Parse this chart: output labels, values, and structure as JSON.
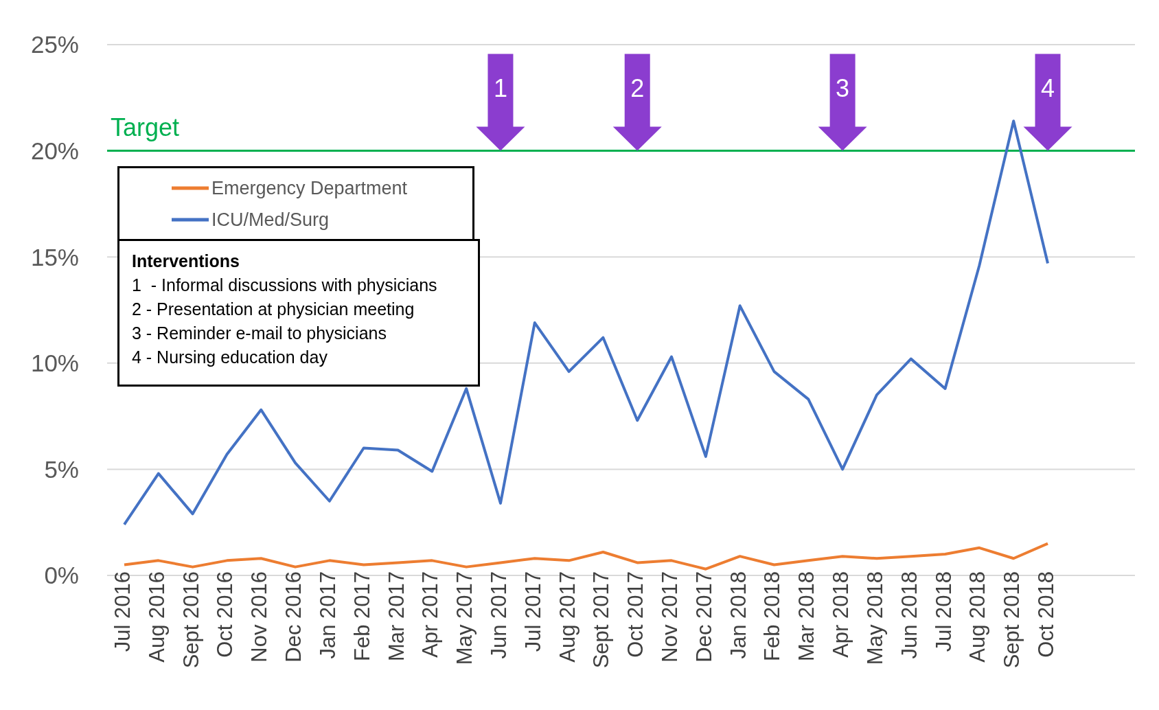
{
  "chart_data": {
    "type": "line",
    "categories": [
      "Jul 2016",
      "Aug 2016",
      "Sept 2016",
      "Oct 2016",
      "Nov 2016",
      "Dec 2016",
      "Jan 2017",
      "Feb 2017",
      "Mar 2017",
      "Apr 2017",
      "May 2017",
      "Jun 2017",
      "Jul 2017",
      "Aug 2017",
      "Sept 2017",
      "Oct 2017",
      "Nov 2017",
      "Dec 2017",
      "Jan 2018",
      "Feb 2018",
      "Mar 2018",
      "Apr 2018",
      "May 2018",
      "Jun 2018",
      "Jul 2018",
      "Aug 2018",
      "Sept 2018",
      "Oct 2018"
    ],
    "series": [
      {
        "name": "Emergency Department",
        "color": "#ed7d31",
        "values": [
          0.5,
          0.7,
          0.4,
          0.7,
          0.8,
          0.4,
          0.7,
          0.5,
          0.6,
          0.7,
          0.4,
          0.6,
          0.8,
          0.7,
          1.1,
          0.6,
          0.7,
          0.3,
          0.9,
          0.5,
          0.7,
          0.9,
          0.8,
          0.9,
          1.0,
          1.3,
          0.8,
          1.5
        ]
      },
      {
        "name": "ICU/Med/Surg",
        "color": "#4472c4",
        "values": [
          2.4,
          4.8,
          2.9,
          5.7,
          7.8,
          5.3,
          3.5,
          6.0,
          5.9,
          4.9,
          8.8,
          3.4,
          11.9,
          9.6,
          11.2,
          7.3,
          10.3,
          5.6,
          12.7,
          9.6,
          8.3,
          5.0,
          8.5,
          10.2,
          8.8,
          14.6,
          21.4,
          14.7
        ]
      }
    ],
    "ylim": [
      0,
      25
    ],
    "yticks": [
      {
        "value": 0,
        "label": "0%"
      },
      {
        "value": 5,
        "label": "5%"
      },
      {
        "value": 10,
        "label": "10%"
      },
      {
        "value": 15,
        "label": "15%"
      },
      {
        "value": 20,
        "label": "20%"
      },
      {
        "value": 25,
        "label": "25%"
      }
    ],
    "grid": "y",
    "legend": "top left",
    "marker": "none",
    "line_style": "solid",
    "ref_lines": [
      {
        "axis": "y",
        "value": 20,
        "label": "Target",
        "color": "#00b050"
      }
    ],
    "annotations": [
      {
        "text": "1",
        "x": "Jun 2017",
        "y": 20
      },
      {
        "text": "2",
        "x": "Oct 2017",
        "y": 20
      },
      {
        "text": "3",
        "x": "Apr 2018",
        "y": 20
      },
      {
        "text": "4",
        "x": "Oct 2018",
        "y": 20
      },
      "Interventions",
      "1  - Informal discussions with physicians",
      "2 - Presentation at physician meeting",
      "3 - Reminder e-mail to physicians",
      "4 - Nursing education day"
    ]
  }
}
